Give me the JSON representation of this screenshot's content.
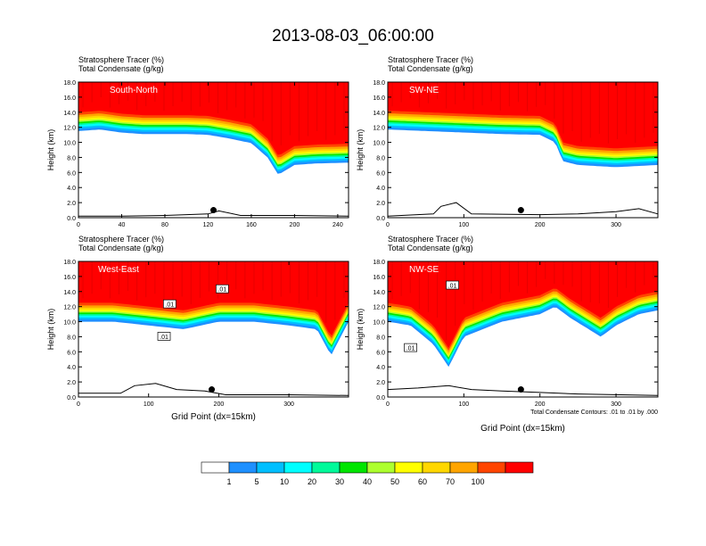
{
  "page_title": "2013-08-03_06:00:00",
  "panel_header": {
    "line1": "Stratosphere Tracer   (%)",
    "line2": "Total Condensate   (g/kg)"
  },
  "footnote": "Total Condensate Contours: .01 to .01 by .000",
  "x_axis_title": "Grid Point (dx=15km)",
  "y_axis_title": "Height (km)",
  "colors": {
    "levels": [
      "#ffffff",
      "#1e90ff",
      "#00bfff",
      "#00ffff",
      "#00fa9a",
      "#00e600",
      "#adff2f",
      "#ffff00",
      "#ffd700",
      "#ffa500",
      "#ff4500",
      "#ff0000"
    ]
  },
  "colorbar": {
    "labels": [
      "1",
      "5",
      "10",
      "20",
      "30",
      "40",
      "50",
      "60",
      "70",
      "100"
    ]
  },
  "chart_data": [
    {
      "type": "heatmap",
      "name": "South-North",
      "title": "South-North",
      "xlim": [
        0,
        250
      ],
      "xticks": [
        0,
        40,
        80,
        120,
        160,
        200,
        240
      ],
      "ylim": [
        0,
        18
      ],
      "yticks": [
        "0.0",
        "2.0",
        "4.0",
        "6.0",
        "8.0",
        "10.0",
        "12.0",
        "14.0",
        "16.0",
        "18.0"
      ],
      "tropopause_km": [
        [
          0,
          14.0
        ],
        [
          20,
          14.2
        ],
        [
          40,
          13.8
        ],
        [
          60,
          13.6
        ],
        [
          80,
          13.6
        ],
        [
          100,
          13.6
        ],
        [
          120,
          13.5
        ],
        [
          140,
          13.0
        ],
        [
          160,
          12.4
        ],
        [
          175,
          10.5
        ],
        [
          185,
          8.2
        ],
        [
          200,
          9.5
        ],
        [
          220,
          9.7
        ],
        [
          250,
          9.8
        ]
      ],
      "terrain_km": [
        [
          0,
          0.2
        ],
        [
          40,
          0.2
        ],
        [
          80,
          0.3
        ],
        [
          120,
          0.5
        ],
        [
          130,
          0.9
        ],
        [
          150,
          0.3
        ],
        [
          200,
          0.3
        ],
        [
          250,
          0.2
        ]
      ],
      "marker": {
        "x": 125,
        "y": 1.0
      },
      "labels": []
    },
    {
      "type": "heatmap",
      "name": "SW-NE",
      "title": "SW-NE",
      "xlim": [
        0,
        355
      ],
      "xticks": [
        0,
        100,
        200,
        300
      ],
      "ylim": [
        0,
        18
      ],
      "yticks": [
        "0.0",
        "2.0",
        "4.0",
        "6.0",
        "8.0",
        "10.0",
        "12.0",
        "14.0",
        "16.0",
        "18.0"
      ],
      "tropopause_km": [
        [
          0,
          14.2
        ],
        [
          50,
          14.0
        ],
        [
          100,
          13.8
        ],
        [
          150,
          13.6
        ],
        [
          200,
          13.5
        ],
        [
          220,
          12.5
        ],
        [
          230,
          10.0
        ],
        [
          250,
          9.5
        ],
        [
          300,
          9.2
        ],
        [
          355,
          9.5
        ]
      ],
      "terrain_km": [
        [
          0,
          0.2
        ],
        [
          60,
          0.5
        ],
        [
          70,
          1.5
        ],
        [
          90,
          2.0
        ],
        [
          110,
          0.5
        ],
        [
          200,
          0.4
        ],
        [
          250,
          0.5
        ],
        [
          300,
          0.8
        ],
        [
          330,
          1.2
        ],
        [
          355,
          0.5
        ]
      ],
      "marker": {
        "x": 175,
        "y": 1.0
      },
      "labels": []
    },
    {
      "type": "heatmap",
      "name": "West-East",
      "title": "West-East",
      "xlim": [
        0,
        385
      ],
      "xticks": [
        0,
        100,
        200,
        300
      ],
      "ylim": [
        0,
        18
      ],
      "yticks": [
        "0.0",
        "2.0",
        "4.0",
        "6.0",
        "8.0",
        "10.0",
        "12.0",
        "14.0",
        "16.0",
        "18.0"
      ],
      "tropopause_km": [
        [
          0,
          12.5
        ],
        [
          50,
          12.5
        ],
        [
          100,
          12.0
        ],
        [
          150,
          11.5
        ],
        [
          200,
          12.5
        ],
        [
          250,
          12.5
        ],
        [
          300,
          12.0
        ],
        [
          340,
          11.5
        ],
        [
          360,
          8.0
        ],
        [
          385,
          12.5
        ]
      ],
      "terrain_km": [
        [
          0,
          0.5
        ],
        [
          60,
          0.5
        ],
        [
          80,
          1.5
        ],
        [
          110,
          1.8
        ],
        [
          140,
          1.0
        ],
        [
          180,
          0.8
        ],
        [
          210,
          0.3
        ],
        [
          300,
          0.3
        ],
        [
          385,
          0.2
        ]
      ],
      "marker": {
        "x": 190,
        "y": 1.0
      },
      "labels": [
        {
          "text": ".01",
          "x": 205,
          "y": 14.3
        },
        {
          "text": ".01",
          "x": 130,
          "y": 12.3
        },
        {
          "text": ".01",
          "x": 122,
          "y": 8.0
        }
      ]
    },
    {
      "type": "heatmap",
      "name": "NW-SE",
      "title": "NW-SE",
      "xlim": [
        0,
        355
      ],
      "xticks": [
        0,
        100,
        200,
        300
      ],
      "ylim": [
        0,
        18
      ],
      "yticks": [
        "0.0",
        "2.0",
        "4.0",
        "6.0",
        "8.0",
        "10.0",
        "12.0",
        "14.0",
        "16.0",
        "18.0"
      ],
      "tropopause_km": [
        [
          0,
          12.5
        ],
        [
          30,
          12.0
        ],
        [
          60,
          9.5
        ],
        [
          80,
          6.5
        ],
        [
          100,
          10.5
        ],
        [
          150,
          12.5
        ],
        [
          200,
          13.5
        ],
        [
          220,
          14.5
        ],
        [
          240,
          13.0
        ],
        [
          280,
          10.5
        ],
        [
          300,
          12.0
        ],
        [
          330,
          13.5
        ],
        [
          355,
          14.0
        ]
      ],
      "terrain_km": [
        [
          0,
          1.0
        ],
        [
          40,
          1.2
        ],
        [
          80,
          1.5
        ],
        [
          110,
          1.0
        ],
        [
          150,
          0.8
        ],
        [
          200,
          0.6
        ],
        [
          250,
          0.4
        ],
        [
          355,
          0.2
        ]
      ],
      "marker": {
        "x": 175,
        "y": 1.0
      },
      "labels": [
        {
          "text": ".01",
          "x": 85,
          "y": 14.8
        },
        {
          "text": ".01",
          "x": 30,
          "y": 6.5
        }
      ]
    }
  ]
}
